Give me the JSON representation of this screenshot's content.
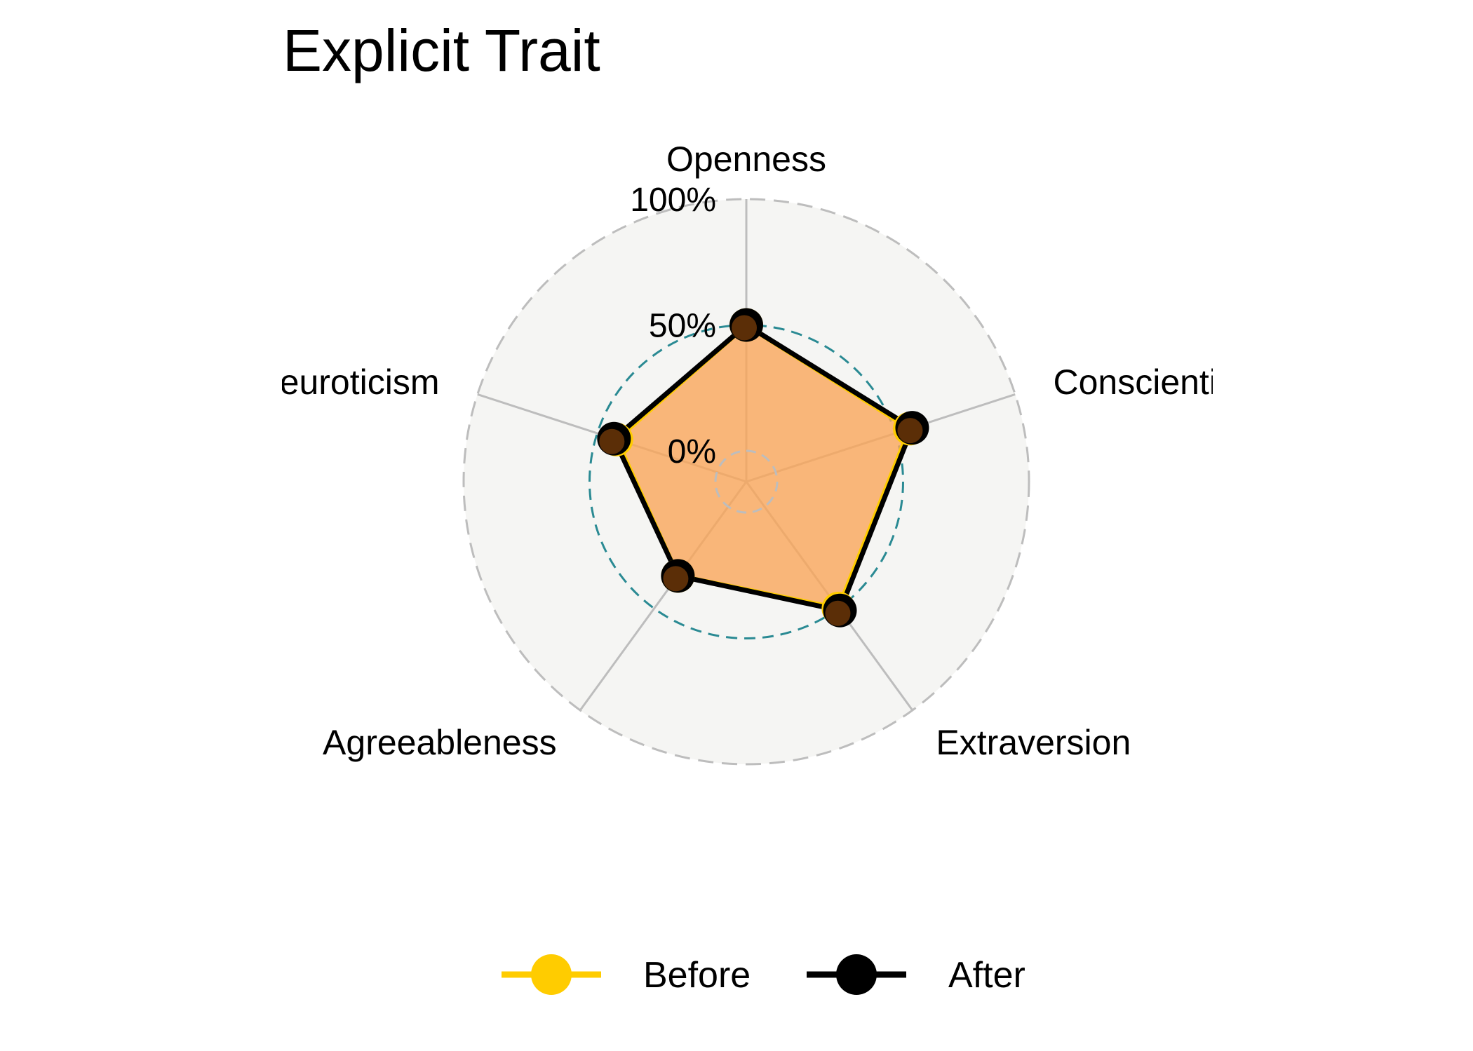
{
  "chart_data": {
    "type": "radar",
    "title": "Explicit Trait",
    "axes": [
      "Openness",
      "Conscientiousness",
      "Extraversion",
      "Agreeableness",
      "Neuroticism"
    ],
    "grid_labels": [
      "0%",
      "50%",
      "100%"
    ],
    "range": [
      0,
      100
    ],
    "series": [
      {
        "name": "Before",
        "values": [
          50,
          56,
          50,
          34,
          42
        ],
        "color": "#FFCC00"
      },
      {
        "name": "After",
        "values": [
          50,
          57,
          51,
          34,
          43
        ],
        "color": "#000000"
      }
    ],
    "fill_color": "#F9A65A",
    "mid_ring_color": "#2A8A93",
    "background_color": "#F5F5F3",
    "legend_position": "bottom"
  }
}
